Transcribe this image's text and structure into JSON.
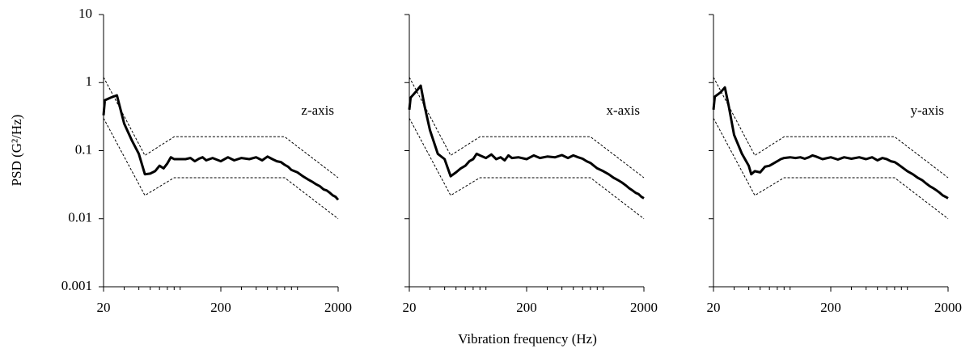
{
  "chart_data": [
    {
      "type": "line",
      "ylabel": "PSD (G²/Hz)",
      "annotation": "z-axis",
      "log": true,
      "minor_ticks": true,
      "ytick_labels": true,
      "xlim": [
        20,
        2000
      ],
      "xticks": [
        20,
        200,
        2000
      ],
      "ylim": [
        0.001,
        10
      ],
      "yticks": [
        0.001,
        0.01,
        0.1,
        1,
        10
      ],
      "series": [
        {
          "color": "#000000",
          "dash": false,
          "x": [
            20,
            20.5,
            23,
            26,
            30,
            35,
            40,
            45,
            50,
            55,
            60,
            65,
            70,
            75,
            80,
            90,
            100,
            110,
            120,
            130,
            140,
            150,
            170,
            200,
            230,
            260,
            300,
            350,
            400,
            450,
            500,
            550,
            600,
            650,
            700,
            750,
            800,
            900,
            1000,
            1100,
            1200,
            1300,
            1400,
            1500,
            1600,
            1700,
            1800,
            1900,
            2000
          ],
          "values": [
            0.33,
            0.55,
            0.6,
            0.65,
            0.25,
            0.14,
            0.09,
            0.045,
            0.046,
            0.05,
            0.06,
            0.055,
            0.065,
            0.08,
            0.075,
            0.075,
            0.075,
            0.078,
            0.07,
            0.076,
            0.08,
            0.072,
            0.078,
            0.07,
            0.08,
            0.072,
            0.078,
            0.075,
            0.08,
            0.072,
            0.082,
            0.075,
            0.07,
            0.068,
            0.062,
            0.058,
            0.052,
            0.048,
            0.042,
            0.038,
            0.035,
            0.032,
            0.03,
            0.027,
            0.026,
            0.024,
            0.022,
            0.021,
            0.019
          ]
        },
        {
          "color": "#000000",
          "dash": true,
          "x": [
            20,
            45,
            80,
            700,
            2000
          ],
          "values": [
            1.2,
            0.085,
            0.16,
            0.16,
            0.04
          ]
        },
        {
          "color": "#000000",
          "dash": true,
          "x": [
            20,
            45,
            80,
            700,
            2000
          ],
          "values": [
            0.3,
            0.022,
            0.04,
            0.04,
            0.01
          ]
        }
      ]
    },
    {
      "type": "line",
      "xlabel": "Vibration frequency (Hz)",
      "annotation": "x-axis",
      "log": true,
      "minor_ticks": true,
      "ytick_labels": false,
      "xlim": [
        20,
        2000
      ],
      "xticks": [
        20,
        200,
        2000
      ],
      "ylim": [
        0.001,
        10
      ],
      "yticks": [
        0.001,
        0.01,
        0.1,
        1,
        10
      ],
      "series": [
        {
          "color": "#000000",
          "dash": false,
          "x": [
            20,
            20.5,
            23,
            25,
            27,
            30,
            35,
            40,
            45,
            50,
            55,
            60,
            65,
            70,
            75,
            80,
            90,
            100,
            110,
            120,
            130,
            140,
            150,
            170,
            200,
            230,
            260,
            300,
            350,
            400,
            450,
            500,
            550,
            600,
            650,
            700,
            750,
            800,
            900,
            1000,
            1100,
            1200,
            1300,
            1400,
            1500,
            1600,
            1700,
            1800,
            1900,
            2000
          ],
          "values": [
            0.4,
            0.6,
            0.75,
            0.9,
            0.45,
            0.2,
            0.09,
            0.075,
            0.042,
            0.048,
            0.055,
            0.06,
            0.07,
            0.075,
            0.09,
            0.085,
            0.078,
            0.088,
            0.075,
            0.08,
            0.072,
            0.085,
            0.078,
            0.08,
            0.075,
            0.085,
            0.078,
            0.082,
            0.08,
            0.086,
            0.078,
            0.085,
            0.08,
            0.076,
            0.07,
            0.066,
            0.06,
            0.055,
            0.05,
            0.045,
            0.04,
            0.037,
            0.034,
            0.031,
            0.028,
            0.026,
            0.024,
            0.023,
            0.021,
            0.02
          ]
        },
        {
          "color": "#000000",
          "dash": true,
          "x": [
            20,
            45,
            80,
            700,
            2000
          ],
          "values": [
            1.2,
            0.085,
            0.16,
            0.16,
            0.04
          ]
        },
        {
          "color": "#000000",
          "dash": true,
          "x": [
            20,
            45,
            80,
            700,
            2000
          ],
          "values": [
            0.3,
            0.022,
            0.04,
            0.04,
            0.01
          ]
        }
      ]
    },
    {
      "type": "line",
      "annotation": "y-axis",
      "log": true,
      "minor_ticks": true,
      "ytick_labels": false,
      "xlim": [
        20,
        2000
      ],
      "xticks": [
        20,
        200,
        2000
      ],
      "ylim": [
        0.001,
        10
      ],
      "yticks": [
        0.001,
        0.01,
        0.1,
        1,
        10
      ],
      "series": [
        {
          "color": "#000000",
          "dash": false,
          "x": [
            20,
            20.5,
            23,
            25,
            27,
            30,
            35,
            40,
            42,
            45,
            50,
            55,
            60,
            65,
            70,
            75,
            80,
            90,
            100,
            110,
            120,
            130,
            140,
            150,
            170,
            200,
            230,
            260,
            300,
            350,
            400,
            450,
            500,
            550,
            600,
            650,
            700,
            750,
            800,
            900,
            1000,
            1100,
            1200,
            1300,
            1400,
            1500,
            1600,
            1700,
            1800,
            1900,
            2000
          ],
          "values": [
            0.4,
            0.62,
            0.72,
            0.85,
            0.45,
            0.17,
            0.09,
            0.06,
            0.045,
            0.05,
            0.048,
            0.058,
            0.06,
            0.065,
            0.07,
            0.075,
            0.078,
            0.08,
            0.078,
            0.08,
            0.076,
            0.08,
            0.085,
            0.082,
            0.075,
            0.08,
            0.074,
            0.08,
            0.076,
            0.08,
            0.075,
            0.08,
            0.072,
            0.078,
            0.075,
            0.07,
            0.068,
            0.063,
            0.058,
            0.05,
            0.045,
            0.04,
            0.037,
            0.033,
            0.03,
            0.028,
            0.026,
            0.024,
            0.022,
            0.021,
            0.02
          ]
        },
        {
          "color": "#000000",
          "dash": true,
          "x": [
            20,
            45,
            80,
            700,
            2000
          ],
          "values": [
            1.2,
            0.085,
            0.16,
            0.16,
            0.04
          ]
        },
        {
          "color": "#000000",
          "dash": true,
          "x": [
            20,
            45,
            80,
            700,
            2000
          ],
          "values": [
            0.3,
            0.022,
            0.04,
            0.04,
            0.01
          ]
        }
      ]
    }
  ]
}
